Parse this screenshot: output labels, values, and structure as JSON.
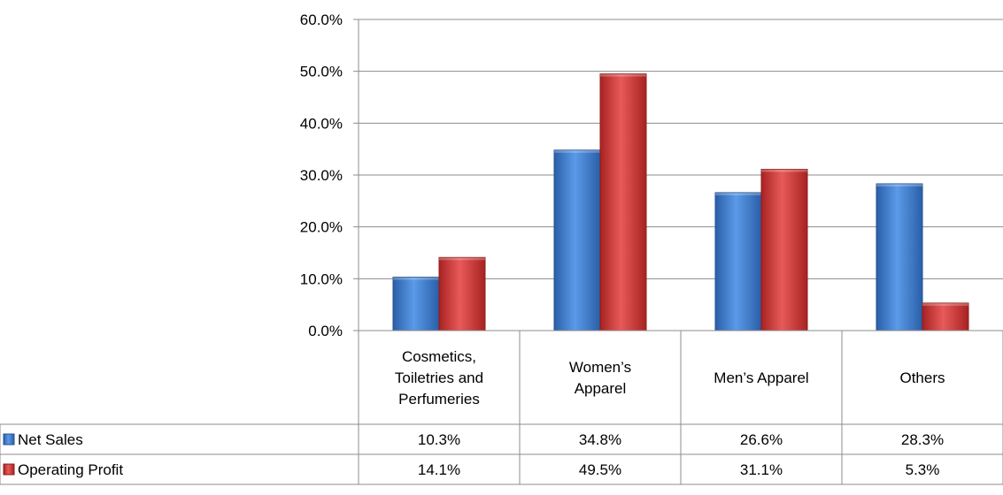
{
  "chart_data": {
    "type": "bar",
    "categories": [
      [
        "Cosmetics,",
        "Toiletries and",
        "Perfumeries"
      ],
      [
        "Women’s",
        "Apparel"
      ],
      [
        "Men’s Apparel"
      ],
      [
        "Others"
      ]
    ],
    "series": [
      {
        "name": "Net Sales",
        "values": [
          10.3,
          34.8,
          26.6,
          28.3
        ],
        "labels": [
          "10.3%",
          "34.8%",
          "26.6%",
          "28.3%"
        ],
        "color": "#3a78c8"
      },
      {
        "name": "Operating Profit",
        "values": [
          14.1,
          49.5,
          31.1,
          5.3
        ],
        "labels": [
          "14.1%",
          "49.5%",
          "31.1%",
          "5.3%"
        ],
        "color": "#d63a3a"
      }
    ],
    "y_ticks": [
      "0.0%",
      "10.0%",
      "20.0%",
      "30.0%",
      "40.0%",
      "50.0%",
      "60.0%"
    ],
    "ylim": [
      0,
      60
    ],
    "grid": true,
    "legend": "data-table-left"
  }
}
